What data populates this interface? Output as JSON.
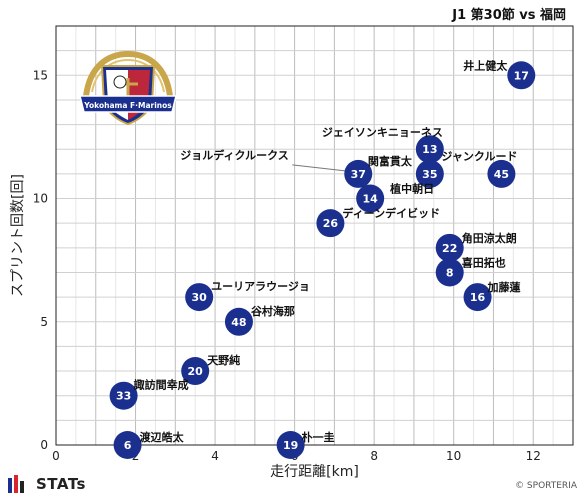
{
  "header": {
    "title": "J1 第30節 vs 福岡"
  },
  "logo": {
    "text": "Yokohama F·Marinos",
    "icon": "yokohama-f-marinos-emblem"
  },
  "footer": {
    "brand": "STATs",
    "copyright": "© SPORTERIA"
  },
  "colors": {
    "marker": "#1b2f8f",
    "grid": "#d0d0d0"
  },
  "chart_data": {
    "type": "scatter",
    "title": "J1 第30節 vs 福岡",
    "xlabel": "走行距離[km]",
    "ylabel": "スプリント回数[回]",
    "xlim": [
      0,
      13
    ],
    "ylim": [
      0,
      17
    ],
    "xticks": [
      0,
      2,
      4,
      6,
      8,
      10,
      12
    ],
    "yticks": [
      0,
      5,
      10,
      15
    ],
    "grid": true,
    "points": [
      {
        "num": "17",
        "name": "井上健太",
        "x": 11.7,
        "y": 15
      },
      {
        "num": "13",
        "name": "ジェイソンキニョーネス",
        "x": 9.4,
        "y": 12
      },
      {
        "num": "45",
        "name": "ジャンクルード",
        "x": 11.2,
        "y": 11
      },
      {
        "num": "37",
        "name": "ジョルディクルークス",
        "x": 7.6,
        "y": 11
      },
      {
        "num": "35",
        "name": "関富貫太",
        "x": 9.4,
        "y": 11
      },
      {
        "num": "14",
        "name": "植中朝日",
        "x": 7.9,
        "y": 10
      },
      {
        "num": "26",
        "name": "ディーンデイビッド",
        "x": 6.9,
        "y": 9
      },
      {
        "num": "22",
        "name": "角田涼太朗",
        "x": 9.9,
        "y": 8
      },
      {
        "num": "8",
        "name": "喜田拓也",
        "x": 9.9,
        "y": 7
      },
      {
        "num": "16",
        "name": "加藤蓮",
        "x": 10.6,
        "y": 6
      },
      {
        "num": "30",
        "name": "ユーリアラウージョ",
        "x": 3.6,
        "y": 6
      },
      {
        "num": "48",
        "name": "谷村海那",
        "x": 4.6,
        "y": 5
      },
      {
        "num": "20",
        "name": "天野純",
        "x": 3.5,
        "y": 3
      },
      {
        "num": "33",
        "name": "諏訪間幸成",
        "x": 1.7,
        "y": 2
      },
      {
        "num": "6",
        "name": "渡辺皓太",
        "x": 1.8,
        "y": 0
      },
      {
        "num": "19",
        "name": "朴一圭",
        "x": 5.9,
        "y": 0
      }
    ]
  }
}
